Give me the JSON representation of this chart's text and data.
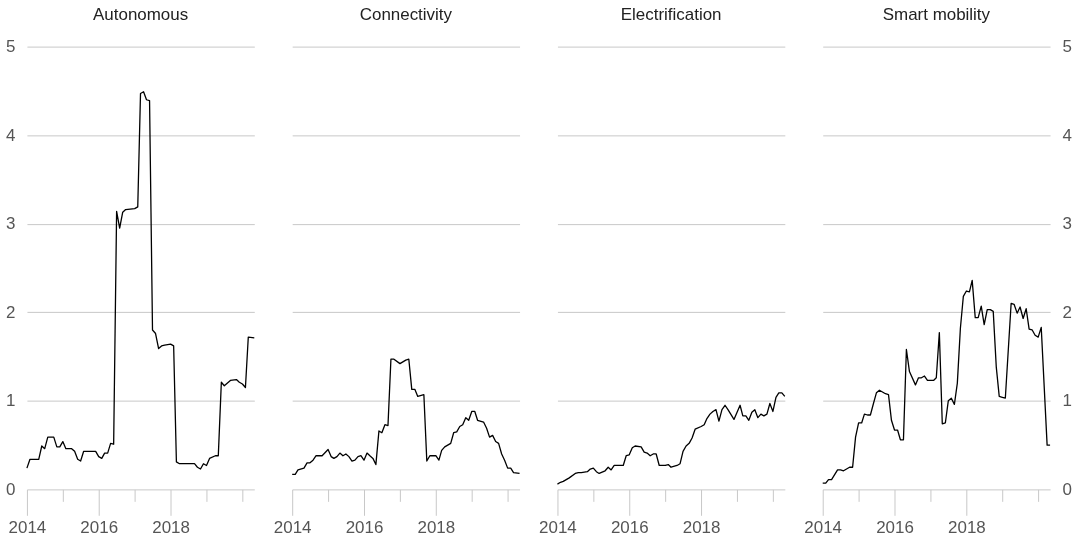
{
  "chart_data": [
    {
      "type": "line",
      "title": "Autonomous",
      "color": "#000000",
      "xlim": [
        "2014-01",
        "2020-05"
      ],
      "xticks": [
        {
          "value": "2014",
          "label": "2014"
        },
        {
          "value": "2015",
          "label": null
        },
        {
          "value": "2016",
          "label": "2016"
        },
        {
          "value": "2017",
          "label": null
        },
        {
          "value": "2018",
          "label": "2018"
        },
        {
          "value": "2019",
          "label": null
        },
        {
          "value": "2020",
          "label": null
        }
      ],
      "ylim": [
        0,
        5
      ],
      "yticks": [
        0,
        1,
        2,
        3,
        4,
        5
      ],
      "grid": "y",
      "x": [
        "2014-01",
        "2014-02",
        "2014-05",
        "2014-06",
        "2014-07",
        "2014-08",
        "2014-10",
        "2014-11",
        "2014-12",
        "2015-01",
        "2015-02",
        "2015-04",
        "2015-05",
        "2015-06",
        "2015-07",
        "2015-08",
        "2015-12",
        "2016-01",
        "2016-02",
        "2016-03",
        "2016-04",
        "2016-05",
        "2016-06",
        "2016-07",
        "2016-08",
        "2016-09",
        "2016-10",
        "2017-01",
        "2017-02",
        "2017-03",
        "2017-04",
        "2017-05",
        "2017-06",
        "2017-07",
        "2017-08",
        "2017-09",
        "2017-10",
        "2017-11",
        "2018-01",
        "2018-02",
        "2018-03",
        "2018-04",
        "2018-09",
        "2018-10",
        "2018-11",
        "2018-12",
        "2019-01",
        "2019-02",
        "2019-04",
        "2019-05",
        "2019-06",
        "2019-07",
        "2019-09",
        "2019-11",
        "2019-12",
        "2020-01",
        "2020-02",
        "2020-03",
        "2020-05"
      ],
      "values": [
        0.24,
        0.34,
        0.34,
        0.49,
        0.46,
        0.59,
        0.59,
        0.48,
        0.48,
        0.54,
        0.46,
        0.46,
        0.43,
        0.34,
        0.32,
        0.43,
        0.43,
        0.37,
        0.35,
        0.41,
        0.41,
        0.52,
        0.51,
        3.14,
        2.95,
        3.13,
        3.16,
        3.17,
        3.19,
        4.47,
        4.49,
        4.4,
        4.39,
        1.8,
        1.76,
        1.59,
        1.62,
        1.63,
        1.64,
        1.62,
        0.31,
        0.29,
        0.29,
        0.25,
        0.23,
        0.29,
        0.27,
        0.35,
        0.38,
        0.38,
        1.21,
        1.17,
        1.23,
        1.24,
        1.21,
        1.19,
        1.15,
        1.72,
        1.71
      ]
    },
    {
      "type": "line",
      "title": "Connectivity",
      "color": "#000000",
      "xlim": [
        "2014-01",
        "2020-05"
      ],
      "xticks": [
        {
          "value": "2014",
          "label": "2014"
        },
        {
          "value": "2015",
          "label": null
        },
        {
          "value": "2016",
          "label": "2016"
        },
        {
          "value": "2017",
          "label": null
        },
        {
          "value": "2018",
          "label": "2018"
        },
        {
          "value": "2019",
          "label": null
        },
        {
          "value": "2020",
          "label": null
        }
      ],
      "ylim": [
        0,
        5
      ],
      "yticks": [
        0,
        1,
        2,
        3,
        4,
        5
      ],
      "grid": "y",
      "tick_labels": "x",
      "x": [
        "2014-01",
        "2014-02",
        "2014-03",
        "2014-05",
        "2014-06",
        "2014-07",
        "2014-08",
        "2014-09",
        "2014-11",
        "2015-01",
        "2015-02",
        "2015-03",
        "2015-04",
        "2015-05",
        "2015-06",
        "2015-07",
        "2015-08",
        "2015-09",
        "2015-10",
        "2015-11",
        "2015-12",
        "2016-01",
        "2016-02",
        "2016-03",
        "2016-04",
        "2016-05",
        "2016-06",
        "2016-07",
        "2016-08",
        "2016-09",
        "2016-10",
        "2016-11",
        "2017-01",
        "2017-03",
        "2017-04",
        "2017-05",
        "2017-06",
        "2017-07",
        "2017-09",
        "2017-10",
        "2017-11",
        "2018-01",
        "2018-02",
        "2018-03",
        "2018-04",
        "2018-06",
        "2018-07",
        "2018-08",
        "2018-09",
        "2018-10",
        "2018-11",
        "2018-12",
        "2019-01",
        "2019-02",
        "2019-03",
        "2019-05",
        "2019-06",
        "2019-07",
        "2019-08",
        "2019-09",
        "2019-10",
        "2019-11",
        "2019-12",
        "2020-01",
        "2020-02",
        "2020-03",
        "2020-05"
      ],
      "values": [
        0.17,
        0.17,
        0.22,
        0.24,
        0.3,
        0.3,
        0.33,
        0.38,
        0.38,
        0.45,
        0.37,
        0.35,
        0.37,
        0.41,
        0.38,
        0.4,
        0.37,
        0.32,
        0.33,
        0.37,
        0.38,
        0.33,
        0.41,
        0.38,
        0.35,
        0.28,
        0.66,
        0.64,
        0.73,
        0.72,
        1.47,
        1.47,
        1.42,
        1.46,
        1.47,
        1.13,
        1.13,
        1.05,
        1.07,
        0.32,
        0.38,
        0.38,
        0.33,
        0.44,
        0.48,
        0.52,
        0.64,
        0.65,
        0.71,
        0.73,
        0.81,
        0.78,
        0.88,
        0.88,
        0.78,
        0.76,
        0.69,
        0.59,
        0.61,
        0.54,
        0.52,
        0.4,
        0.33,
        0.24,
        0.24,
        0.19,
        0.18
      ]
    },
    {
      "type": "line",
      "title": "Electrification",
      "color": "#000000",
      "xlim": [
        "2014-01",
        "2020-05"
      ],
      "xticks": [
        {
          "value": "2014",
          "label": "2014"
        },
        {
          "value": "2015",
          "label": null
        },
        {
          "value": "2016",
          "label": "2016"
        },
        {
          "value": "2017",
          "label": null
        },
        {
          "value": "2018",
          "label": "2018"
        },
        {
          "value": "2019",
          "label": null
        },
        {
          "value": "2020",
          "label": null
        }
      ],
      "ylim": [
        0,
        5
      ],
      "yticks": [
        0,
        1,
        2,
        3,
        4,
        5
      ],
      "grid": "y",
      "tick_labels": "x",
      "x": [
        "2014-01",
        "2014-02",
        "2014-03",
        "2014-05",
        "2014-07",
        "2014-08",
        "2014-09",
        "2014-11",
        "2014-12",
        "2015-01",
        "2015-02",
        "2015-03",
        "2015-05",
        "2015-06",
        "2015-07",
        "2015-08",
        "2015-11",
        "2015-12",
        "2016-01",
        "2016-02",
        "2016-03",
        "2016-05",
        "2016-06",
        "2016-07",
        "2016-08",
        "2016-09",
        "2016-10",
        "2016-11",
        "2017-01",
        "2017-02",
        "2017-03",
        "2017-05",
        "2017-06",
        "2017-07",
        "2017-08",
        "2017-09",
        "2017-10",
        "2017-11",
        "2018-01",
        "2018-02",
        "2018-03",
        "2018-04",
        "2018-05",
        "2018-06",
        "2018-07",
        "2018-08",
        "2018-09",
        "2018-10",
        "2018-12",
        "2019-02",
        "2019-03",
        "2019-04",
        "2019-05",
        "2019-06",
        "2019-07",
        "2019-08",
        "2019-09",
        "2019-10",
        "2019-11",
        "2019-12",
        "2020-01",
        "2020-02",
        "2020-03",
        "2020-04",
        "2020-05"
      ],
      "values": [
        0.06,
        0.08,
        0.09,
        0.13,
        0.18,
        0.19,
        0.19,
        0.2,
        0.23,
        0.24,
        0.2,
        0.18,
        0.21,
        0.25,
        0.22,
        0.27,
        0.27,
        0.38,
        0.39,
        0.47,
        0.49,
        0.48,
        0.42,
        0.41,
        0.38,
        0.4,
        0.4,
        0.27,
        0.27,
        0.28,
        0.25,
        0.27,
        0.29,
        0.43,
        0.49,
        0.52,
        0.58,
        0.68,
        0.71,
        0.73,
        0.8,
        0.85,
        0.88,
        0.9,
        0.77,
        0.9,
        0.95,
        0.9,
        0.79,
        0.95,
        0.83,
        0.83,
        0.78,
        0.87,
        0.9,
        0.81,
        0.85,
        0.83,
        0.85,
        0.97,
        0.88,
        1.04,
        1.09,
        1.09,
        1.05
      ]
    },
    {
      "type": "line",
      "title": "Smart mobility",
      "color": "#000000",
      "xlim": [
        "2014-01",
        "2020-05"
      ],
      "xticks": [
        {
          "value": "2014",
          "label": "2014"
        },
        {
          "value": "2015",
          "label": null
        },
        {
          "value": "2016",
          "label": "2016"
        },
        {
          "value": "2017",
          "label": null
        },
        {
          "value": "2018",
          "label": "2018"
        },
        {
          "value": "2019",
          "label": null
        },
        {
          "value": "2020",
          "label": null
        }
      ],
      "ylim": [
        0,
        5
      ],
      "yticks": [
        0,
        1,
        2,
        3,
        4,
        5
      ],
      "grid": "y",
      "x": [
        "2014-01",
        "2014-02",
        "2014-03",
        "2014-04",
        "2014-06",
        "2014-07",
        "2014-08",
        "2014-10",
        "2014-11",
        "2014-12",
        "2015-01",
        "2015-02",
        "2015-03",
        "2015-04",
        "2015-05",
        "2015-06",
        "2015-07",
        "2015-08",
        "2015-10",
        "2015-11",
        "2015-12",
        "2016-01",
        "2016-02",
        "2016-03",
        "2016-04",
        "2016-05",
        "2016-06",
        "2016-08",
        "2016-09",
        "2016-10",
        "2016-11",
        "2016-12",
        "2017-02",
        "2017-03",
        "2017-04",
        "2017-05",
        "2017-06",
        "2017-07",
        "2017-08",
        "2017-09",
        "2017-10",
        "2017-11",
        "2017-12",
        "2018-01",
        "2018-02",
        "2018-03",
        "2018-04",
        "2018-05",
        "2018-06",
        "2018-07",
        "2018-08",
        "2018-09",
        "2018-10",
        "2018-11",
        "2018-12",
        "2019-01",
        "2019-02",
        "2019-04",
        "2019-05",
        "2019-06",
        "2019-07",
        "2019-08",
        "2019-09",
        "2019-10",
        "2019-11",
        "2019-12",
        "2020-01",
        "2020-02",
        "2020-04",
        "2020-05"
      ],
      "values": [
        0.07,
        0.07,
        0.11,
        0.11,
        0.22,
        0.22,
        0.21,
        0.25,
        0.25,
        0.59,
        0.75,
        0.75,
        0.85,
        0.84,
        0.84,
        0.97,
        1.09,
        1.12,
        1.08,
        1.07,
        0.78,
        0.67,
        0.67,
        0.56,
        0.56,
        1.58,
        1.33,
        1.18,
        1.26,
        1.26,
        1.28,
        1.23,
        1.23,
        1.26,
        1.77,
        0.74,
        0.75,
        1.0,
        1.03,
        0.96,
        1.2,
        1.82,
        2.18,
        2.24,
        2.23,
        2.36,
        1.94,
        1.94,
        2.07,
        1.86,
        2.03,
        2.03,
        2.01,
        1.38,
        1.05,
        1.04,
        1.03,
        2.1,
        2.09,
        1.99,
        2.06,
        1.93,
        2.04,
        1.81,
        1.8,
        1.74,
        1.72,
        1.83,
        0.5,
        0.5
      ]
    }
  ]
}
